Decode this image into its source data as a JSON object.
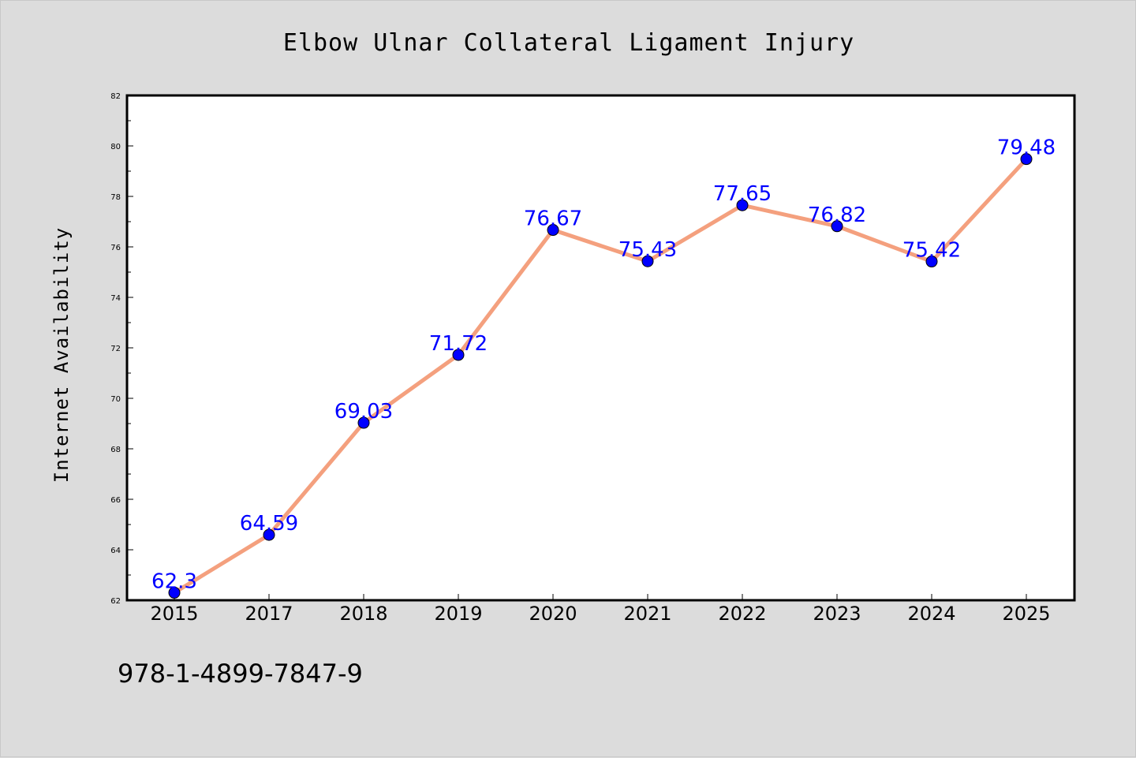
{
  "chart_data": {
    "type": "line",
    "title": "Elbow Ulnar Collateral Ligament Injury",
    "xlabel": "",
    "ylabel": "Internet Availability",
    "categories": [
      "2015",
      "2017",
      "2018",
      "2019",
      "2020",
      "2021",
      "2022",
      "2023",
      "2024",
      "2025"
    ],
    "series": [
      {
        "values": [
          62.3,
          64.59,
          69.03,
          71.72,
          76.67,
          75.43,
          77.65,
          76.82,
          75.42,
          79.48
        ],
        "data_labels": [
          "62.3",
          "64.59",
          "69.03",
          "71.72",
          "76.67",
          "75.43",
          "77.65",
          "76.82",
          "75.42",
          "79.48"
        ],
        "line_color": "#f4a07e",
        "marker_color": "#0000ff"
      }
    ],
    "ylim": [
      62,
      82
    ],
    "yticks": [
      "62",
      "64",
      "66",
      "68",
      "70",
      "72",
      "74",
      "76",
      "78",
      "80",
      "82"
    ],
    "grid": false,
    "legend": "none"
  },
  "annotation": {
    "isbn": "978-1-4899-7847-9"
  },
  "colors": {
    "background": "#dcdcdc",
    "plot_background": "#ffffff",
    "line": "#f4a07e",
    "marker": "#0000ff",
    "data_label": "#0000ff"
  }
}
